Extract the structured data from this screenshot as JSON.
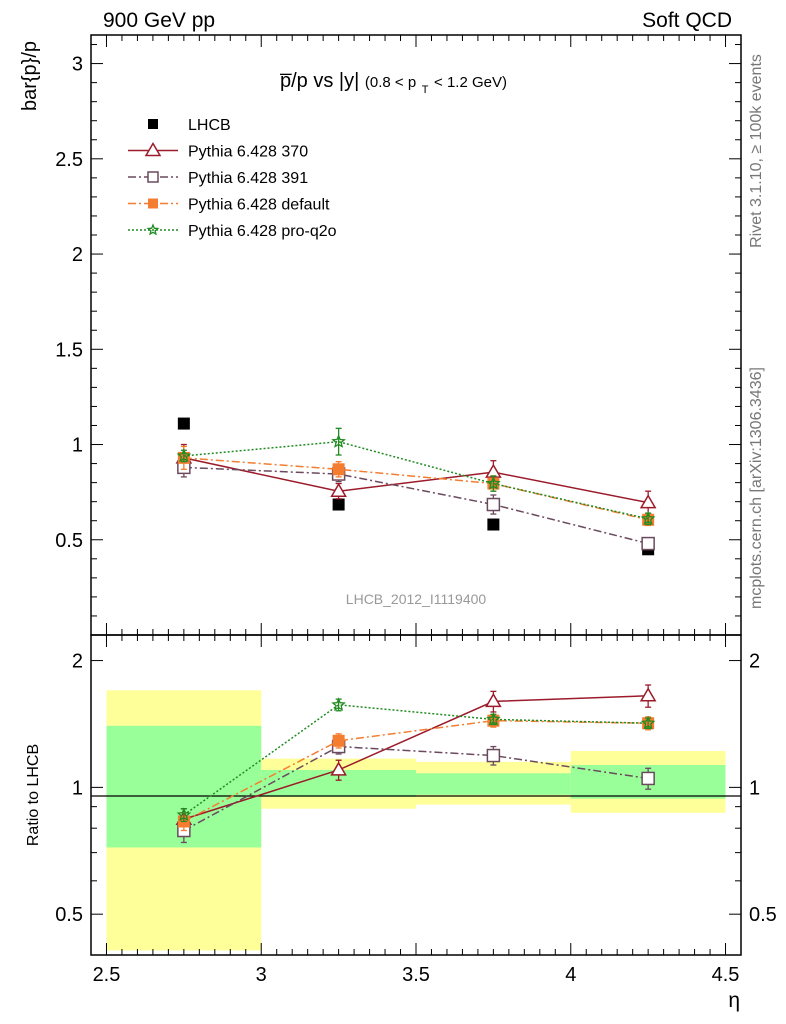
{
  "header": {
    "left": "900 GeV pp",
    "right": "Soft QCD"
  },
  "side_labels": {
    "rivet": "Rivet 3.1.10, ≥ 100k events",
    "mcplots": "mcplots.cern.ch [arXiv:1306.3436]"
  },
  "watermark": "LHCB_2012_I1119400",
  "chart_data": [
    {
      "type": "line",
      "title_main": "p̅/p vs |y|",
      "title_cut_open": "(0.8 < p",
      "title_cut_sub": "T",
      "title_cut_close": " < 1.2 GeV)",
      "ylabel": "bar{p}/p",
      "ylim": [
        0,
        3.15
      ],
      "yticks": [
        0.5,
        1,
        1.5,
        2,
        2.5,
        3
      ],
      "ytick_labels": [
        "0.5",
        "1",
        "1.5",
        "2",
        "2.5",
        "3"
      ],
      "x": [
        2.75,
        3.25,
        3.75,
        4.25
      ],
      "series": [
        {
          "name": "LHCB",
          "color": "#000000",
          "marker": "filled-square",
          "line": "none",
          "values": [
            1.11,
            0.685,
            0.58,
            0.45
          ],
          "errors": [
            0,
            0,
            0,
            0
          ]
        },
        {
          "name": "Pythia 6.428 370",
          "color": "#9b1b2a",
          "marker": "open-triangle",
          "line": "solid",
          "values": [
            0.93,
            0.755,
            0.855,
            0.695
          ],
          "errors": [
            0.07,
            0.04,
            0.06,
            0.06
          ]
        },
        {
          "name": "Pythia 6.428 391",
          "color": "#6b4a5e",
          "marker": "open-square",
          "line": "dashdot",
          "values": [
            0.88,
            0.845,
            0.685,
            0.48
          ],
          "errors": [
            0.05,
            0.04,
            0.05,
            0.03
          ]
        },
        {
          "name": "Pythia 6.428 default",
          "color": "#f47d30",
          "marker": "filled-square",
          "line": "dashdot",
          "values": [
            0.93,
            0.87,
            0.795,
            0.605
          ],
          "errors": [
            0.06,
            0.04,
            0.04,
            0.03
          ]
        },
        {
          "name": "Pythia 6.428 pro-q2o",
          "color": "#228b22",
          "marker": "star",
          "line": "dotted",
          "values": [
            0.94,
            1.015,
            0.795,
            0.61
          ],
          "errors": [
            0.03,
            0.07,
            0.04,
            0.03
          ]
        }
      ]
    },
    {
      "type": "line",
      "ylabel": "Ratio to LHCB",
      "xlabel": "η",
      "ylim": [
        0.4,
        2.3
      ],
      "yscale": "log",
      "yticks": [
        0.5,
        1,
        2
      ],
      "ytick_labels": [
        "0.5",
        "1",
        "2"
      ],
      "xlim": [
        2.45,
        4.55
      ],
      "xticks": [
        2.5,
        3,
        3.5,
        4,
        4.5
      ],
      "xtick_labels": [
        "2.5",
        "3",
        "3.5",
        "4",
        "4.5"
      ],
      "x": [
        2.75,
        3.25,
        3.75,
        4.25
      ],
      "bands": [
        {
          "x0": 2.5,
          "x1": 3.0,
          "inner": [
            0.72,
            1.4
          ],
          "outer": [
            0.41,
            1.7
          ]
        },
        {
          "x0": 3.0,
          "x1": 3.5,
          "inner": [
            0.95,
            1.1
          ],
          "outer": [
            0.89,
            1.17
          ]
        },
        {
          "x0": 3.5,
          "x1": 4.0,
          "inner": [
            0.96,
            1.08
          ],
          "outer": [
            0.91,
            1.15
          ]
        },
        {
          "x0": 4.0,
          "x1": 4.5,
          "inner": [
            0.94,
            1.13
          ],
          "outer": [
            0.87,
            1.22
          ]
        }
      ],
      "series": [
        {
          "name": "Pythia 6.428 370",
          "color": "#9b1b2a",
          "marker": "open-triangle",
          "line": "solid",
          "values": [
            0.84,
            1.1,
            1.6,
            1.65
          ],
          "errors": [
            0.05,
            0.06,
            0.09,
            0.1
          ]
        },
        {
          "name": "Pythia 6.428 391",
          "color": "#6b4a5e",
          "marker": "open-square",
          "line": "dashdot",
          "values": [
            0.79,
            1.25,
            1.19,
            1.05
          ],
          "errors": [
            0.05,
            0.05,
            0.06,
            0.06
          ]
        },
        {
          "name": "Pythia 6.428 default",
          "color": "#f47d30",
          "marker": "filled-square",
          "line": "dashdot",
          "values": [
            0.83,
            1.29,
            1.44,
            1.42
          ],
          "errors": [
            0.04,
            0.05,
            0.05,
            0.05
          ]
        },
        {
          "name": "Pythia 6.428 pro-q2o",
          "color": "#228b22",
          "marker": "star",
          "line": "dotted",
          "values": [
            0.86,
            1.57,
            1.45,
            1.42
          ],
          "errors": [
            0.03,
            0.05,
            0.04,
            0.04
          ]
        }
      ]
    }
  ]
}
